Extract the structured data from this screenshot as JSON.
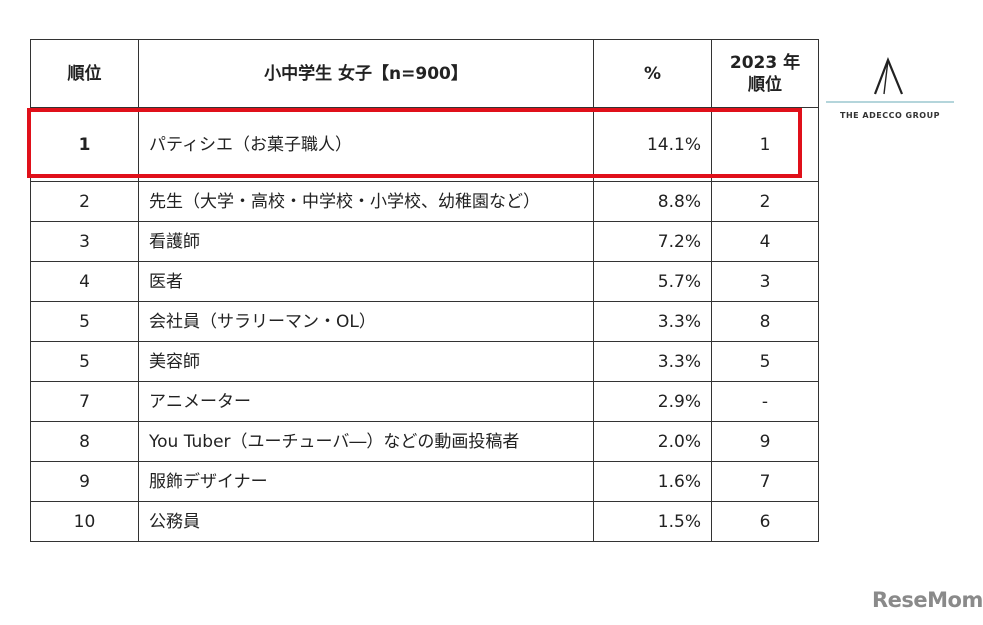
{
  "chart_data": {
    "type": "table",
    "columns": [
      "順位",
      "小中学生 女子【n=900】",
      "%",
      "2023 年 順位"
    ],
    "header_prev_lines": [
      "2023 年",
      "順位"
    ],
    "rows": [
      {
        "rank": "1",
        "job": "パティシエ（お菓子職人）",
        "pct": "14.1%",
        "prev": "1",
        "highlight": true
      },
      {
        "rank": "2",
        "job": "先生（大学・高校・中学校・小学校、幼稚園など）",
        "pct": "8.8%",
        "prev": "2"
      },
      {
        "rank": "3",
        "job": "看護師",
        "pct": "7.2%",
        "prev": "4"
      },
      {
        "rank": "4",
        "job": "医者",
        "pct": "5.7%",
        "prev": "3"
      },
      {
        "rank": "5",
        "job": "会社員（サラリーマン・OL）",
        "pct": "3.3%",
        "prev": "8"
      },
      {
        "rank": "5",
        "job": "美容師",
        "pct": "3.3%",
        "prev": "5"
      },
      {
        "rank": "7",
        "job": "アニメーター",
        "pct": "2.9%",
        "prev": "-"
      },
      {
        "rank": "8",
        "job": "You Tuber（ユーチューバ―）などの動画投稿者",
        "pct": "2.0%",
        "prev": "9"
      },
      {
        "rank": "9",
        "job": "服飾デザイナー",
        "pct": "1.6%",
        "prev": "7"
      },
      {
        "rank": "10",
        "job": "公務員",
        "pct": "1.5%",
        "prev": "6"
      }
    ],
    "highlight_color": "#e0101a"
  },
  "logo": {
    "text": "THE ADECCO GROUP",
    "icon": "adecco-a-icon"
  },
  "watermark": {
    "text": "ReseMom"
  }
}
